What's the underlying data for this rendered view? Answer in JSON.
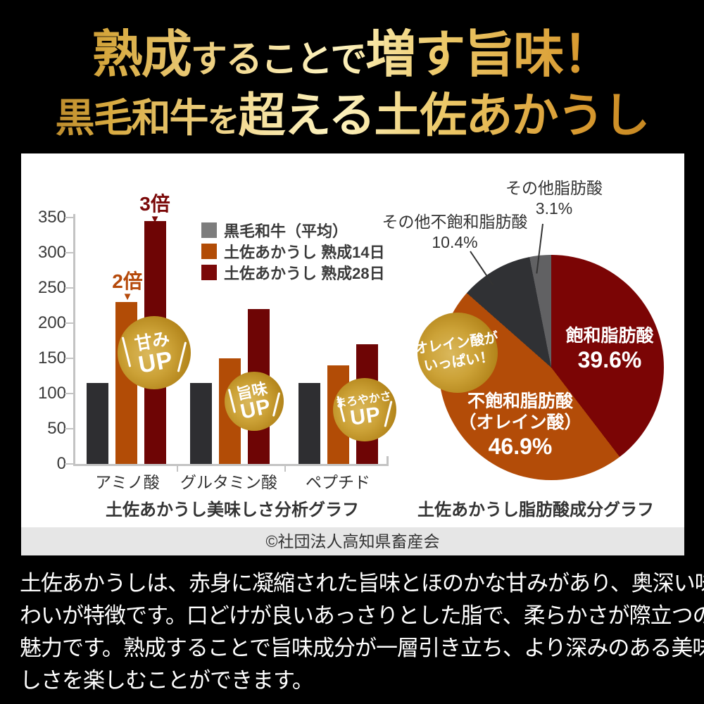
{
  "header": {
    "line1": {
      "seg1": "熟成",
      "seg2": "することで",
      "seg3": "増す旨味！"
    },
    "line2": {
      "seg1": "黒毛和牛",
      "seg2": "を",
      "seg3": "超える",
      "seg4": "土佐あかうし"
    }
  },
  "colors": {
    "page_bg": "#000000",
    "panel_bg": "#ffffff",
    "strip_bg": "#e6e6e6",
    "gold_accent": "#cca237",
    "axis": "#c3c3c3",
    "text_dark": "#333333",
    "footer_text": "#ffffff"
  },
  "chart_data": [
    {
      "type": "bar",
      "title": "土佐あかうし美味しさ分析グラフ",
      "categories": [
        "アミノ酸",
        "グルタミン酸",
        "ペプチド"
      ],
      "series": [
        {
          "name": "黒毛和牛（平均）",
          "color": "#2e2e31",
          "legend_color": "#7d7d7d",
          "values": [
            115,
            115,
            115
          ]
        },
        {
          "name": "土佐あかうし 熟成14日",
          "color": "#b24c06",
          "legend_color": "#b24c06",
          "values": [
            230,
            150,
            140
          ]
        },
        {
          "name": "土佐あかうし 熟成28日",
          "color": "#6e0505",
          "legend_color": "#7b0909",
          "values": [
            345,
            220,
            170
          ]
        }
      ],
      "ylim": [
        0,
        350
      ],
      "ytick_step": 50,
      "grid": false,
      "legend_position": "top-right-inside",
      "annotations": [
        {
          "text": "2倍",
          "marker": "▼",
          "color": "#b5490a",
          "category": "アミノ酸",
          "series": "土佐あかうし 熟成14日"
        },
        {
          "text": "3倍",
          "marker": "▼",
          "color": "#7b0909",
          "category": "アミノ酸",
          "series": "土佐あかうし 熟成28日"
        }
      ],
      "badges": [
        {
          "line1": "甘み",
          "line2": "UP"
        },
        {
          "line1": "旨味",
          "line2": "UP"
        },
        {
          "line1": "まろやかさ",
          "line2": "UP"
        }
      ]
    },
    {
      "type": "pie",
      "title": "土佐あかうし脂肪酸成分グラフ",
      "start_angle_deg": 0,
      "direction": "clockwise",
      "slices": [
        {
          "label": "飽和脂肪酸",
          "value": 39.6,
          "pct_text": "39.6%",
          "color": "#7b0505",
          "label_position": "inside"
        },
        {
          "label": "不飽和脂肪酸（オレイン酸）",
          "label_line1": "不飽和脂肪酸",
          "label_line2": "（オレイン酸）",
          "value": 46.9,
          "pct_text": "46.9%",
          "color": "#b34c08",
          "label_position": "inside"
        },
        {
          "label": "その他不飽和脂肪酸",
          "value": 10.4,
          "pct_text": "10.4%",
          "color": "#303134",
          "label_position": "outside"
        },
        {
          "label": "その他脂肪酸",
          "value": 3.1,
          "pct_text": "3.1%",
          "color": "#616163",
          "label_position": "outside"
        }
      ],
      "badge": {
        "line1": "オレイン酸が",
        "line2": "いっぱい！"
      }
    }
  ],
  "credit": "©社団法人高知県畜産会",
  "footer": {
    "lines": [
      "土佐あかうしは、赤身に凝縮された旨味とほのかな甘みがあり、奥深い味",
      "わいが特徴です。口どけが良いあっさりとした脂で、柔らかさが際立つのも",
      "魅力です。熟成することで旨味成分が一層引き立ち、より深みのある美味",
      "しさを楽しむことができます。"
    ]
  }
}
